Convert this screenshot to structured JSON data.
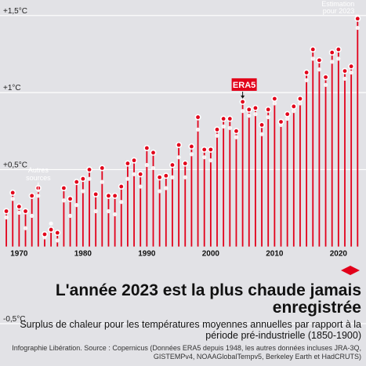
{
  "chart_data": {
    "type": "lollipop",
    "title": "L'année 2023 est la plus chaude jamais enregistrée",
    "subtitle": "Surplus de chaleur pour les températures moyennes annuelles par rapport à la période pré-industrielle (1850-1900)",
    "credit": "Infographie Libération. Source : Copernicus (Données ERA5 depuis 1948, les autres données incluses JRA-3Q, GISTEMPv4, NOAAGlobalTempv5, Berkeley Earth et HadCRUTS)",
    "y_ticks": [
      {
        "value": 1.5,
        "label": "+1,5°C"
      },
      {
        "value": 1.0,
        "label": "+1°C"
      },
      {
        "value": 0.5,
        "label": "+0,5°C"
      },
      {
        "value": -0.5,
        "label": "-0,5°C"
      }
    ],
    "x_ticks": [
      {
        "value": 1970,
        "label": "1970"
      },
      {
        "value": 1980,
        "label": "1980"
      },
      {
        "value": 1990,
        "label": "1990"
      },
      {
        "value": 2000,
        "label": "2000"
      },
      {
        "value": 2010,
        "label": "2010"
      },
      {
        "value": 2020,
        "label": "2020"
      }
    ],
    "ylim": [
      -0.5,
      1.55
    ],
    "xlim": [
      1967.5,
      2023.7
    ],
    "x": [
      1967,
      1968,
      1969,
      1970,
      1971,
      1972,
      1973,
      1974,
      1975,
      1976,
      1977,
      1978,
      1979,
      1980,
      1981,
      1982,
      1983,
      1984,
      1985,
      1986,
      1987,
      1988,
      1989,
      1990,
      1991,
      1992,
      1993,
      1994,
      1995,
      1996,
      1997,
      1998,
      1999,
      2000,
      2001,
      2002,
      2003,
      2004,
      2005,
      2006,
      2007,
      2008,
      2009,
      2010,
      2011,
      2012,
      2013,
      2014,
      2015,
      2016,
      2017,
      2018,
      2019,
      2020,
      2021,
      2022,
      2023
    ],
    "series": [
      {
        "name": "ERA5",
        "color": "#e2001a",
        "values": [
          0.24,
          0.23,
          0.35,
          0.26,
          0.23,
          0.33,
          0.38,
          0.08,
          0.11,
          0.09,
          0.38,
          0.31,
          0.42,
          0.44,
          0.5,
          0.34,
          0.51,
          0.33,
          0.33,
          0.39,
          0.54,
          0.56,
          0.47,
          0.64,
          0.61,
          0.45,
          0.46,
          0.53,
          0.66,
          0.54,
          0.65,
          0.84,
          0.63,
          0.63,
          0.76,
          0.83,
          0.83,
          0.75,
          0.94,
          0.89,
          0.9,
          0.79,
          0.89,
          0.96,
          0.81,
          0.86,
          0.91,
          0.96,
          1.13,
          1.28,
          1.21,
          1.1,
          1.26,
          1.28,
          1.14,
          1.17,
          1.48
        ]
      },
      {
        "name": "Autres sources",
        "color": "#ffffff",
        "values": [
          0.2,
          0.19,
          0.31,
          0.22,
          0.12,
          0.2,
          0.33,
          0.06,
          0.15,
          0.04,
          0.3,
          0.2,
          0.27,
          0.36,
          0.44,
          0.23,
          0.42,
          0.23,
          0.21,
          0.29,
          0.44,
          0.47,
          0.39,
          0.53,
          0.51,
          0.36,
          0.38,
          0.45,
          0.58,
          0.45,
          0.6,
          0.76,
          0.58,
          0.56,
          0.72,
          0.78,
          0.77,
          0.71,
          0.88,
          0.85,
          0.86,
          0.73,
          0.84,
          0.93,
          0.79,
          0.83,
          0.88,
          0.93,
          1.08,
          1.22,
          1.15,
          1.05,
          1.2,
          1.22,
          1.09,
          1.13,
          1.42
        ]
      }
    ],
    "annotations": {
      "era5_label": "ERA5",
      "era5_year": 2005,
      "autres_label": [
        "Autres",
        "sources"
      ],
      "autres_year": 1973,
      "estimation_label": [
        "Estimation",
        "pour 2023"
      ],
      "estimation_year": 2023
    },
    "grid": true,
    "baseline": 0
  },
  "colors": {
    "background": "#e2e2e6",
    "accent": "#e2001a",
    "grid": "#ffffff"
  }
}
